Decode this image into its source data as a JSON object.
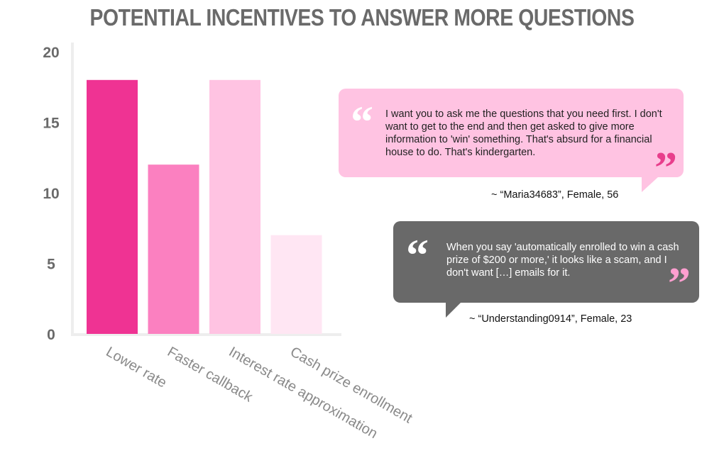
{
  "chart_data": {
    "type": "bar",
    "title": "POTENTIAL INCENTIVES TO ANSWER MORE QUESTIONS",
    "categories": [
      "Lower rate",
      "Faster callback",
      "Interest rate approximation",
      "Cash prize enrollment"
    ],
    "values": [
      18,
      12,
      18,
      7
    ],
    "ylim": [
      0,
      20
    ],
    "yticks": [
      "0",
      "5",
      "10",
      "15",
      "20"
    ],
    "bar_colors": [
      "#ef3393",
      "#fb80c0",
      "#ffc3e2",
      "#ffe6f3"
    ],
    "grid": false
  },
  "quotes": [
    {
      "text": "I want you to ask me the questions that you need first. I don't want to get to the end and then get asked to give more information to 'win' something. That's absurd for a financial house to do. That's kindergarten.",
      "attribution": "~ “Maria34683”, Female, 56",
      "open_mark": "“",
      "close_mark": "”",
      "bubble_color": "#ffc3e2"
    },
    {
      "text": "When you say 'automatically enrolled to win a cash prize of $200 or more,' it looks like a scam, and I don't want […] emails for it.",
      "attribution": "~ “Understanding0914”, Female, 23",
      "open_mark": "“",
      "close_mark": "”",
      "bubble_color": "#696969"
    }
  ]
}
